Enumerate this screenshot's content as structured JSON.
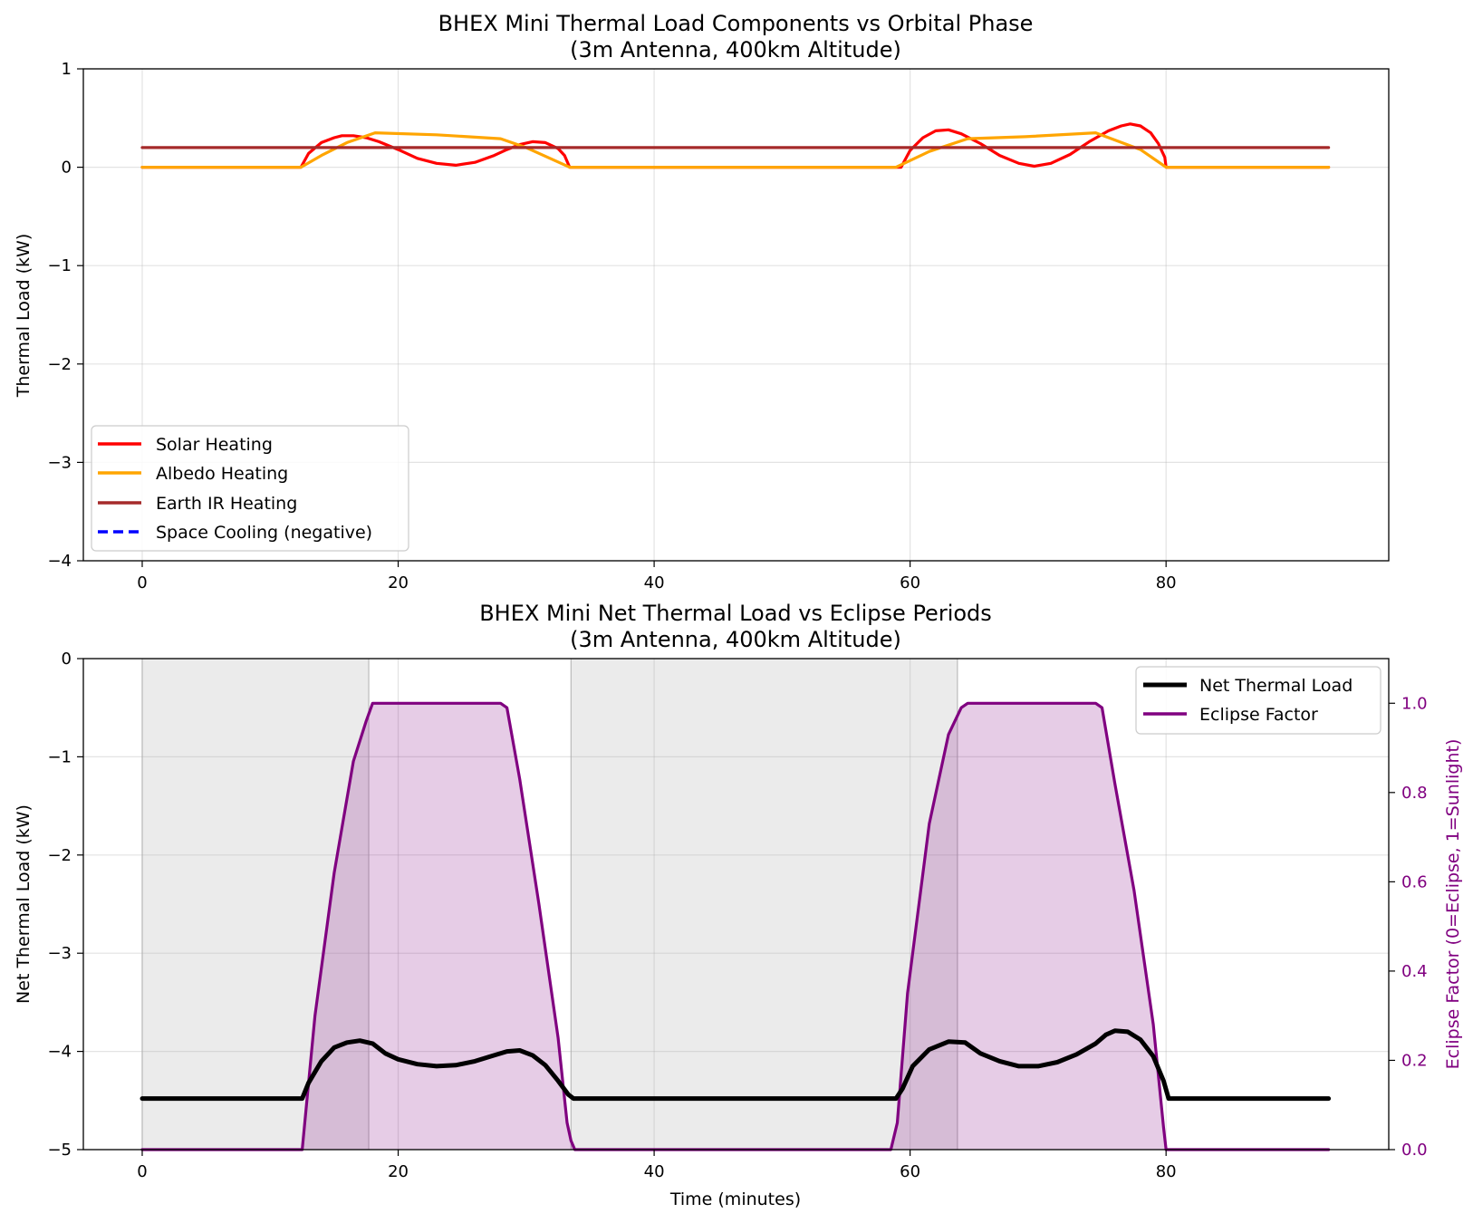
{
  "chart_data": [
    {
      "type": "line",
      "title": "BHEX Mini Thermal Load Components vs Orbital Phase",
      "subtitle": "(3m Antenna, 400km Altitude)",
      "xlabel": "",
      "ylabel": "Thermal Load (kW)",
      "xlim": [
        -4.6,
        97.4
      ],
      "ylim": [
        -4,
        1
      ],
      "xticks": [
        "0",
        "20",
        "40",
        "60",
        "80"
      ],
      "yticks": [
        "1",
        "0",
        "−1",
        "−2",
        "−3",
        "−4"
      ],
      "grid": true,
      "legend_position": "lower-left",
      "series": [
        {
          "name": "Solar Heating",
          "color": "#ff0000",
          "style": "solid",
          "x": [
            0,
            12.4,
            13,
            14,
            15,
            15.6,
            16.5,
            17.5,
            18.5,
            20,
            21.5,
            23,
            24.5,
            26,
            27.5,
            28.5,
            29.5,
            30.5,
            31.5,
            32.5,
            33,
            33.4,
            40,
            50,
            58.9,
            59.3,
            60,
            61,
            62,
            63,
            64,
            65.5,
            67,
            68.5,
            69.7,
            71,
            72.5,
            74,
            75.5,
            76.5,
            77.2,
            78,
            78.8,
            79.4,
            79.9,
            80,
            92.7
          ],
          "y": [
            0,
            0,
            0.14,
            0.25,
            0.3,
            0.32,
            0.32,
            0.3,
            0.26,
            0.18,
            0.09,
            0.04,
            0.02,
            0.05,
            0.12,
            0.18,
            0.23,
            0.26,
            0.25,
            0.19,
            0.12,
            0,
            0,
            0,
            0,
            0,
            0.17,
            0.3,
            0.37,
            0.38,
            0.34,
            0.24,
            0.12,
            0.04,
            0.01,
            0.04,
            0.13,
            0.26,
            0.37,
            0.42,
            0.44,
            0.42,
            0.35,
            0.24,
            0.1,
            0,
            0
          ]
        },
        {
          "name": "Albedo Heating",
          "color": "#ffa500",
          "style": "solid",
          "x": [
            0,
            12.4,
            14,
            16,
            18.2,
            23,
            28,
            30,
            33.4,
            40,
            50,
            58.9,
            61.5,
            64.5,
            69,
            74.5,
            78,
            80,
            92.7
          ],
          "y": [
            0,
            0,
            0.12,
            0.25,
            0.35,
            0.33,
            0.29,
            0.2,
            0,
            0,
            0,
            0,
            0.16,
            0.29,
            0.31,
            0.35,
            0.18,
            0,
            0
          ]
        },
        {
          "name": "Earth IR Heating",
          "color": "#a52a2a",
          "style": "solid",
          "x": [
            0,
            92.7
          ],
          "y": [
            0.2,
            0.2
          ]
        },
        {
          "name": "Space Cooling (negative)",
          "color": "#0000ff",
          "style": "dashed",
          "x": [],
          "y": []
        }
      ]
    },
    {
      "type": "line",
      "title": "BHEX Mini Net Thermal Load vs Eclipse Periods",
      "subtitle": "(3m Antenna, 400km Altitude)",
      "xlabel": "Time (minutes)",
      "ylabel": "Net Thermal Load (kW)",
      "y2label": "Eclipse Factor (0=Eclipse, 1=Sunlight)",
      "xlim": [
        -4.6,
        97.4
      ],
      "ylim": [
        -5,
        0
      ],
      "y2lim": [
        0,
        1.1
      ],
      "xticks": [
        "0",
        "20",
        "40",
        "60",
        "80"
      ],
      "yticks": [
        "0",
        "−1",
        "−2",
        "−3",
        "−4",
        "−5"
      ],
      "y2ticks": [
        "0.0",
        "0.2",
        "0.4",
        "0.6",
        "0.8",
        "1.0"
      ],
      "grid": true,
      "legend_position": "top-right",
      "eclipse_shading": [
        [
          0,
          17.7
        ],
        [
          33.5,
          63.7
        ]
      ],
      "series": [
        {
          "name": "Net Thermal Load",
          "color": "#000000",
          "axis": "left",
          "x": [
            0,
            12.5,
            13,
            14,
            15,
            16,
            17,
            18,
            19,
            20,
            21.5,
            23,
            24.5,
            26,
            27.5,
            28.5,
            29.5,
            30.5,
            31.5,
            32.5,
            33.3,
            33.7,
            40,
            50,
            58.9,
            59.4,
            60.2,
            61.5,
            63,
            64.3,
            65.5,
            67,
            68.5,
            70,
            71.5,
            73,
            74.5,
            75.3,
            76,
            77,
            78,
            79,
            79.8,
            80.2,
            92.7
          ],
          "y": [
            -4.48,
            -4.48,
            -4.32,
            -4.1,
            -3.96,
            -3.91,
            -3.89,
            -3.92,
            -4.02,
            -4.08,
            -4.13,
            -4.15,
            -4.14,
            -4.1,
            -4.04,
            -4.0,
            -3.99,
            -4.04,
            -4.14,
            -4.3,
            -4.44,
            -4.48,
            -4.48,
            -4.48,
            -4.48,
            -4.38,
            -4.15,
            -3.98,
            -3.9,
            -3.91,
            -4.02,
            -4.1,
            -4.15,
            -4.15,
            -4.11,
            -4.03,
            -3.92,
            -3.83,
            -3.79,
            -3.8,
            -3.88,
            -4.05,
            -4.3,
            -4.48,
            -4.48
          ]
        },
        {
          "name": "Eclipse Factor",
          "color": "#800080",
          "axis": "right",
          "x": [
            0,
            12.5,
            13.5,
            15,
            16.5,
            17.5,
            18,
            18.5,
            20,
            25,
            28,
            28.5,
            29.5,
            31,
            32.5,
            33.2,
            33.5,
            33.8,
            40,
            50,
            58.5,
            59,
            59.8,
            61.5,
            63,
            64,
            64.5,
            65,
            70,
            74.5,
            75,
            76,
            77.5,
            79,
            79.8,
            80,
            92.7
          ],
          "y": [
            0,
            0,
            0.3,
            0.62,
            0.87,
            0.96,
            1.0,
            1.0,
            1.0,
            1.0,
            1.0,
            0.99,
            0.83,
            0.55,
            0.25,
            0.06,
            0.02,
            0,
            0,
            0,
            0,
            0.06,
            0.35,
            0.73,
            0.93,
            0.99,
            1.0,
            1.0,
            1.0,
            1.0,
            0.99,
            0.82,
            0.58,
            0.28,
            0.05,
            0,
            0
          ]
        }
      ]
    }
  ]
}
